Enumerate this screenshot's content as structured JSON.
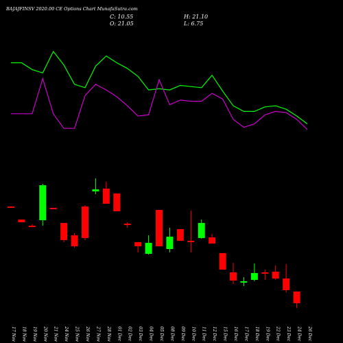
{
  "chart_data": {
    "type": "candlestick",
    "title": "BAJAJFINSV 2020.00  CE Options  Chart MunafaSutra.com",
    "ohlc_readout": {
      "close": "C: 10.55",
      "high": "H: 21.10",
      "open": "O: 21.05",
      "low": "L: 6.75"
    },
    "categories": [
      "17 Nov",
      "18 Nov",
      "19 Nov",
      "20 Nov",
      "21 Nov",
      "24 Nov",
      "25 Nov",
      "26 Nov",
      "27 Nov",
      "28 Nov",
      "01 Dec",
      "02 Dec",
      "03 Dec",
      "04 Dec",
      "05 Dec",
      "08 Dec",
      "09 Dec",
      "10 Dec",
      "11 Dec",
      "12 Dec",
      "15 Dec",
      "16 Dec",
      "17 Dec",
      "18 Dec",
      "19 Dec",
      "22 Dec",
      "23 Dec",
      "24 Dec",
      "26 Dec"
    ],
    "candles": [
      {
        "open": 0.5,
        "close": 0.5,
        "high": 0.5,
        "low": 0.5
      },
      {
        "open": 0.434,
        "close": 0.463,
        "high": 0.463,
        "low": 0.434
      },
      {
        "open": 0.399,
        "close": 0.399,
        "high": 0.412,
        "low": 0.389
      },
      {
        "open": 0.486,
        "close": 0.843,
        "high": 0.856,
        "low": 0.383
      },
      {
        "open": 0.476,
        "close": 0.476,
        "high": 0.476,
        "low": 0.476
      },
      {
        "open": 0.37,
        "close": 0.201,
        "high": 0.37,
        "low": 0.181
      },
      {
        "open": 0.181,
        "close": 0.087,
        "high": 0.201,
        "low": 0.075
      },
      {
        "open": 0.486,
        "close": 0.192,
        "high": 0.499,
        "low": 0.172
      },
      {
        "open": 0.701,
        "close": 0.735,
        "high": 0.839,
        "low": 0.672
      },
      {
        "open": 0.711,
        "close": 0.566,
        "high": 0.775,
        "low": 0.566
      },
      {
        "open": 0.63,
        "close": 0.363,
        "high": 0.63,
        "low": 0.363
      },
      {
        "open": 0.363,
        "close": 0.363,
        "high": 0.38,
        "low": 0.324
      },
      {
        "open": 0.18,
        "close": 0.122,
        "high": 0.18,
        "low": 0.1
      },
      {
        "open": 0.019,
        "close": 0.173,
        "high": 0.173,
        "low": 0.01
      },
      {
        "open": 0.416,
        "close": 0.095,
        "high": 0.416,
        "low": 0.095
      },
      {
        "open": 0.074,
        "close": 0.207,
        "high": 0.286,
        "low": 0.048
      },
      {
        "open": 0.272,
        "close": 0.155,
        "high": 0.272,
        "low": 0.155
      },
      {
        "open": 0.195,
        "close": 0.195,
        "high": 0.195,
        "low": 0.195
      },
      {
        "open": 0.188,
        "close": 0.357,
        "high": 0.367,
        "low": 0.1
      },
      {
        "open": 0.221,
        "close": 0.158,
        "high": 0.221,
        "low": 0.158
      },
      {
        "open": 0.16,
        "close": 0.01,
        "high": 0.16,
        "low": 0.01
      },
      {
        "open": 0.01,
        "close": 0.01,
        "high": 0.01,
        "low": 0.01
      },
      {
        "open": 0.01,
        "close": 0.01,
        "high": 0.01,
        "low": 0.01
      },
      {
        "open": 0.01,
        "close": 0.01,
        "high": 0.01,
        "low": 0.01
      },
      {
        "open": 0.01,
        "close": 0.01,
        "high": 0.01,
        "low": 0.01
      },
      {
        "open": 0.01,
        "close": 0.01,
        "high": 0.01,
        "low": 0.01
      },
      {
        "open": 0.01,
        "close": 0.01,
        "high": 0.01,
        "low": 0.01
      },
      {
        "open": 0.01,
        "close": 0.01,
        "high": 0.01,
        "low": 0.01
      },
      {
        "open": 0.01,
        "close": 0.01,
        "high": 0.01,
        "low": 0.01
      }
    ],
    "candles_lower": [
      {
        "open": 0.19,
        "close": 0.19,
        "high": 0.19,
        "low": 0.19
      },
      {
        "open": 0.19,
        "close": 0.19,
        "high": 0.19,
        "low": 0.19
      },
      {
        "open": 0.19,
        "close": 0.19,
        "high": 0.19,
        "low": 0.19
      },
      {
        "open": 0.19,
        "close": 0.19,
        "high": 0.19,
        "low": 0.19
      },
      {
        "open": 0.19,
        "close": 0.19,
        "high": 0.19,
        "low": 0.19
      },
      {
        "open": 0.19,
        "close": 0.19,
        "high": 0.19,
        "low": 0.19
      },
      {
        "open": 0.19,
        "close": 0.19,
        "high": 0.19,
        "low": 0.19
      },
      {
        "open": 0.19,
        "close": 0.19,
        "high": 0.19,
        "low": 0.19
      },
      {
        "open": 0.19,
        "close": 0.19,
        "high": 0.19,
        "low": 0.19
      },
      {
        "open": 0.19,
        "close": 0.19,
        "high": 0.19,
        "low": 0.19
      },
      {
        "open": 0.19,
        "close": 0.19,
        "high": 0.19,
        "low": 0.19
      },
      {
        "open": 0.19,
        "close": 0.19,
        "high": 0.19,
        "low": 0.19
      },
      {
        "open": 0.19,
        "close": 0.19,
        "high": 0.19,
        "low": 0.19
      },
      {
        "open": 0.19,
        "close": 0.19,
        "high": 0.19,
        "low": 0.19
      },
      {
        "open": 0.19,
        "close": 0.19,
        "high": 0.19,
        "low": 0.19
      },
      {
        "open": 0.19,
        "close": 0.19,
        "high": 0.19,
        "low": 0.19
      },
      {
        "open": 0.19,
        "close": 0.19,
        "high": 0.19,
        "low": 0.19
      },
      {
        "open": 0.19,
        "close": 0.19,
        "high": 0.19,
        "low": 0.19
      },
      {
        "open": 0.19,
        "close": 0.19,
        "high": 0.19,
        "low": 0.19
      },
      {
        "open": 0.19,
        "close": 0.19,
        "high": 0.19,
        "low": 0.19
      },
      {
        "open": 0.19,
        "close": 0.19,
        "high": 0.19,
        "low": 0.19
      },
      {
        "open": 0.19,
        "close": 0.047,
        "high": 0.19,
        "low": 0.047
      },
      {
        "open": 0.047,
        "close": 0.0,
        "high": 0.12,
        "low": -0.02
      },
      {
        "open": -0.01,
        "close": 0.0,
        "high": 0.0,
        "low": -0.02
      },
      {
        "open": 0.0,
        "close": 0.04,
        "high": 0.1,
        "low": 0.0
      },
      {
        "open": 0.04,
        "close": 0.04,
        "high": 0.07,
        "low": 0.02
      },
      {
        "open": 0.05,
        "close": 0.02,
        "high": 0.08,
        "low": 0.0
      },
      {
        "open": 0.0,
        "close": -0.06,
        "high": 0.11,
        "low": -0.09
      },
      {
        "open": -0.11,
        "close": -0.19,
        "high": -0.11,
        "low": -0.22
      }
    ],
    "series": [
      {
        "color": "#00ff00",
        "values": [
          0.9,
          0.9,
          0.84,
          0.81,
          1.0,
          0.88,
          0.71,
          0.68,
          0.87,
          0.96,
          0.9,
          0.85,
          0.78,
          0.66,
          0.67,
          0.66,
          0.7,
          0.69,
          0.68,
          0.79,
          0.65,
          0.52,
          0.47,
          0.47,
          0.51,
          0.52,
          0.49,
          0.43,
          0.36
        ]
      },
      {
        "color": "#cc00cc",
        "values": [
          0.45,
          0.45,
          0.45,
          0.76,
          0.45,
          0.32,
          0.32,
          0.61,
          0.71,
          0.66,
          0.6,
          0.52,
          0.43,
          0.44,
          0.75,
          0.53,
          0.57,
          0.56,
          0.56,
          0.63,
          0.58,
          0.4,
          0.33,
          0.36,
          0.44,
          0.47,
          0.46,
          0.4,
          0.31
        ]
      }
    ],
    "colors": {
      "up": "#00ff00",
      "down": "#ff0000",
      "background": "#000000",
      "text": "#ffffff"
    },
    "grid": false,
    "legend": "none"
  }
}
